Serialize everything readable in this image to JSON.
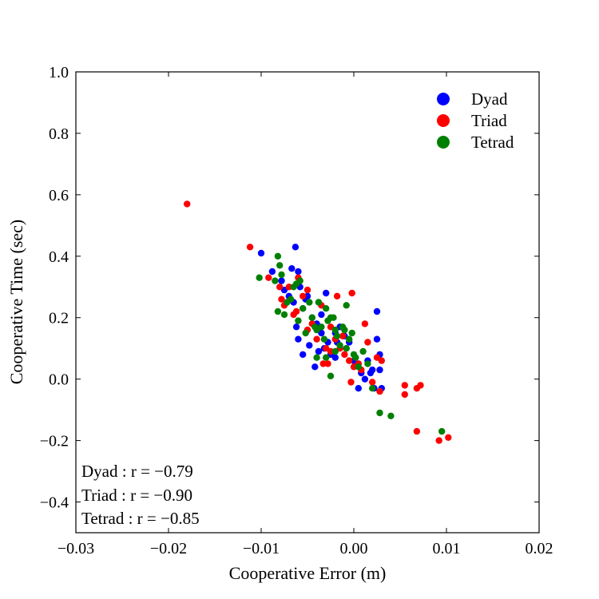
{
  "chart_data": {
    "type": "scatter",
    "xlabel": "Cooperative Error (m)",
    "ylabel": "Cooperative Time (sec)",
    "xlim": [
      -0.03,
      0.02
    ],
    "ylim": [
      -0.5,
      1.0
    ],
    "xticks": [
      -0.03,
      -0.02,
      -0.01,
      0.0,
      0.01,
      0.02
    ],
    "xtick_labels": [
      "−0.03",
      "−0.02",
      "−0.01",
      "0.00",
      "0.01",
      "0.02"
    ],
    "yticks": [
      -0.4,
      -0.2,
      0.0,
      0.2,
      0.4,
      0.6,
      0.8,
      1.0
    ],
    "ytick_labels": [
      "−0.4",
      "−0.2",
      "0.0",
      "0.2",
      "0.4",
      "0.6",
      "0.8",
      "1.0"
    ],
    "grid": false,
    "legend_position": "top-right",
    "annotations": [
      "Dyad : r = −0.79",
      "Triad : r = −0.90",
      "Tetrad : r = −0.85"
    ],
    "series": [
      {
        "name": "Dyad",
        "color": "#0000ff",
        "points": [
          [
            -0.01,
            0.41
          ],
          [
            -0.0088,
            0.35
          ],
          [
            -0.0078,
            0.32
          ],
          [
            -0.0067,
            0.36
          ],
          [
            -0.0063,
            0.43
          ],
          [
            -0.006,
            0.35
          ],
          [
            -0.0058,
            0.3
          ],
          [
            -0.005,
            0.27
          ],
          [
            -0.007,
            0.27
          ],
          [
            -0.0065,
            0.25
          ],
          [
            -0.0055,
            0.23
          ],
          [
            -0.0075,
            0.29
          ],
          [
            -0.0045,
            0.2
          ],
          [
            -0.004,
            0.18
          ],
          [
            -0.0035,
            0.15
          ],
          [
            -0.003,
            0.28
          ],
          [
            -0.0028,
            0.12
          ],
          [
            -0.0032,
            0.1
          ],
          [
            -0.0038,
            0.09
          ],
          [
            -0.0042,
            0.04
          ],
          [
            -0.0055,
            0.08
          ],
          [
            -0.006,
            0.13
          ],
          [
            -0.0048,
            0.11
          ],
          [
            -0.0025,
            0.08
          ],
          [
            -0.002,
            0.15
          ],
          [
            -0.0015,
            0.17
          ],
          [
            -0.001,
            0.14
          ],
          [
            -0.0005,
            0.12
          ],
          [
            0.0,
            0.06
          ],
          [
            0.0005,
            0.05
          ],
          [
            0.0008,
            0.02
          ],
          [
            0.0012,
            0.0
          ],
          [
            0.0015,
            0.06
          ],
          [
            0.0018,
            0.02
          ],
          [
            0.002,
            0.03
          ],
          [
            0.0022,
            -0.03
          ],
          [
            0.0025,
            0.22
          ],
          [
            0.0025,
            0.13
          ],
          [
            0.0028,
            0.08
          ],
          [
            0.0028,
            0.03
          ],
          [
            0.003,
            -0.03
          ],
          [
            0.0005,
            -0.03
          ],
          [
            -0.002,
            0.07
          ],
          [
            -0.0008,
            0.1
          ],
          [
            -0.0062,
            0.17
          ],
          [
            -0.0052,
            0.26
          ],
          [
            -0.0035,
            0.21
          ],
          [
            -0.0018,
            0.12
          ]
        ]
      },
      {
        "name": "Triad",
        "color": "#ff0000",
        "points": [
          [
            -0.018,
            0.57
          ],
          [
            -0.0112,
            0.43
          ],
          [
            -0.0092,
            0.33
          ],
          [
            -0.008,
            0.3
          ],
          [
            -0.0075,
            0.24
          ],
          [
            -0.007,
            0.3
          ],
          [
            -0.0065,
            0.21
          ],
          [
            -0.006,
            0.33
          ],
          [
            -0.0055,
            0.27
          ],
          [
            -0.005,
            0.29
          ],
          [
            -0.0045,
            0.18
          ],
          [
            -0.004,
            0.13
          ],
          [
            -0.0035,
            0.24
          ],
          [
            -0.003,
            0.1
          ],
          [
            -0.0025,
            0.09
          ],
          [
            -0.002,
            0.13
          ],
          [
            -0.0018,
            0.27
          ],
          [
            -0.0015,
            0.1
          ],
          [
            -0.001,
            0.08
          ],
          [
            -0.0005,
            0.06
          ],
          [
            -0.0002,
            0.28
          ],
          [
            0.0,
            0.04
          ],
          [
            0.0005,
            0.05
          ],
          [
            0.0008,
            0.03
          ],
          [
            0.0012,
            0.18
          ],
          [
            0.0015,
            0.12
          ],
          [
            0.002,
            -0.01
          ],
          [
            0.0025,
            0.07
          ],
          [
            0.0028,
            -0.04
          ],
          [
            0.003,
            0.06
          ],
          [
            0.0055,
            -0.02
          ],
          [
            0.0055,
            -0.05
          ],
          [
            0.0068,
            -0.03
          ],
          [
            0.0072,
            -0.02
          ],
          [
            0.0068,
            -0.17
          ],
          [
            0.0092,
            -0.2
          ],
          [
            0.0102,
            -0.19
          ],
          [
            -0.0033,
            0.05
          ],
          [
            -0.0028,
            0.05
          ],
          [
            -0.0012,
            0.14
          ],
          [
            -0.0062,
            0.22
          ],
          [
            -0.005,
            0.16
          ],
          [
            -0.0078,
            0.26
          ],
          [
            -0.0025,
            0.17
          ],
          [
            -0.0003,
            -0.01
          ]
        ]
      },
      {
        "name": "Tetrad",
        "color": "#008000",
        "points": [
          [
            -0.0102,
            0.33
          ],
          [
            -0.0082,
            0.4
          ],
          [
            -0.008,
            0.37
          ],
          [
            -0.0078,
            0.34
          ],
          [
            -0.0085,
            0.32
          ],
          [
            -0.0082,
            0.22
          ],
          [
            -0.0075,
            0.21
          ],
          [
            -0.0072,
            0.25
          ],
          [
            -0.0068,
            0.26
          ],
          [
            -0.0065,
            0.3
          ],
          [
            -0.0062,
            0.31
          ],
          [
            -0.0058,
            0.32
          ],
          [
            -0.0055,
            0.23
          ],
          [
            -0.0052,
            0.15
          ],
          [
            -0.0048,
            0.25
          ],
          [
            -0.0045,
            0.2
          ],
          [
            -0.0042,
            0.17
          ],
          [
            -0.004,
            0.16
          ],
          [
            -0.0038,
            0.25
          ],
          [
            -0.0035,
            0.17
          ],
          [
            -0.0032,
            0.13
          ],
          [
            -0.003,
            0.23
          ],
          [
            -0.0028,
            0.19
          ],
          [
            -0.0025,
            0.2
          ],
          [
            -0.0022,
            0.2
          ],
          [
            -0.002,
            0.16
          ],
          [
            -0.0018,
            0.14
          ],
          [
            -0.0015,
            0.11
          ],
          [
            -0.0012,
            0.17
          ],
          [
            -0.001,
            0.16
          ],
          [
            -0.0008,
            0.24
          ],
          [
            -0.0005,
            0.13
          ],
          [
            -0.0002,
            0.15
          ],
          [
            0.0,
            0.08
          ],
          [
            0.0002,
            0.07
          ],
          [
            0.0005,
            0.04
          ],
          [
            0.001,
            0.09
          ],
          [
            0.002,
            -0.03
          ],
          [
            0.0028,
            -0.11
          ],
          [
            0.004,
            -0.12
          ],
          [
            0.0095,
            -0.17
          ],
          [
            -0.0025,
            0.01
          ],
          [
            -0.006,
            0.19
          ],
          [
            -0.003,
            0.07
          ],
          [
            -0.002,
            0.09
          ],
          [
            -0.0008,
            0.1
          ],
          [
            0.0015,
            0.05
          ],
          [
            -0.004,
            0.07
          ]
        ]
      }
    ]
  }
}
